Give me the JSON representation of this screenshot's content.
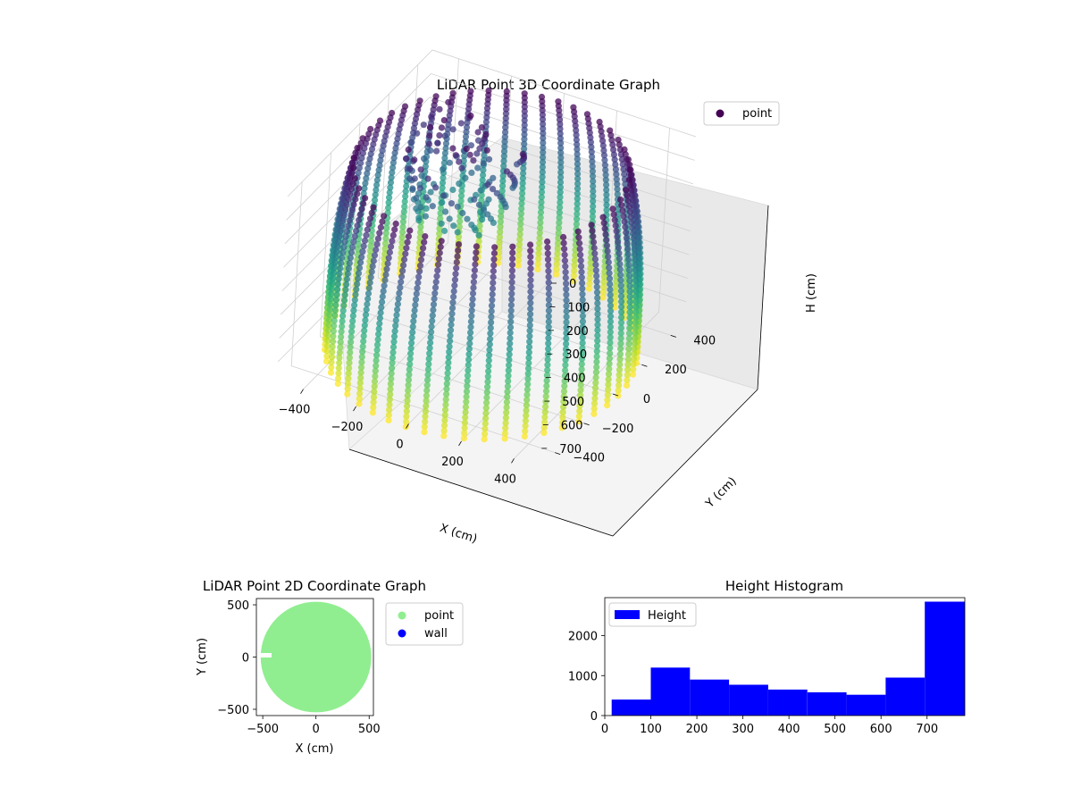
{
  "chart_data": [
    {
      "type": "scatter",
      "projection": "3d",
      "title": "LiDAR Point 3D Coordinate Graph",
      "xlabel": "X (cm)",
      "ylabel": "Y (cm)",
      "zlabel": "H (cm)",
      "xticks": [
        "−400",
        "−200",
        "0",
        "200",
        "400"
      ],
      "yticks": [
        "−400",
        "−200",
        "0",
        "200",
        "400"
      ],
      "zticks": [
        "0",
        "100",
        "200",
        "300",
        "400",
        "500",
        "600",
        "700"
      ],
      "zlim": [
        780,
        0
      ],
      "z_inverted": true,
      "colormap": "viridis",
      "legend": {
        "placement": "upper right",
        "entries": [
          "point"
        ],
        "marker_color": "#440154"
      },
      "grid": true,
      "series": [
        {
          "name": "point",
          "shape": "cylindrical wall of vertical scan lines",
          "radius": 520,
          "z_range": [
            0,
            780
          ],
          "scan_lines": 48
        }
      ]
    },
    {
      "type": "scatter",
      "title": "LiDAR Point 2D Coordinate Graph",
      "xlabel": "X (cm)",
      "ylabel": "Y (cm)",
      "xticks": [
        "−500",
        "0",
        "500"
      ],
      "yticks": [
        "−500",
        "0",
        "500"
      ],
      "xlim": [
        -560,
        540
      ],
      "ylim": [
        -560,
        560
      ],
      "legend": {
        "placement": "outside right",
        "entries": [
          "point",
          "wall"
        ]
      },
      "series": [
        {
          "name": "point",
          "color": "#90ee90",
          "shape": "filled disc",
          "radius": 520,
          "center": [
            0,
            0
          ]
        },
        {
          "name": "wall",
          "color": "#0000ff",
          "points": []
        }
      ]
    },
    {
      "type": "bar",
      "title": "Height Histogram",
      "xticks": [
        "0",
        "100",
        "200",
        "300",
        "400",
        "500",
        "600",
        "700"
      ],
      "yticks": [
        "0",
        "1000",
        "2000"
      ],
      "xlim": [
        0,
        782
      ],
      "ylim": [
        0,
        2950
      ],
      "legend": {
        "placement": "upper left",
        "entries": [
          "Height"
        ]
      },
      "color": "#0000ff",
      "series": [
        {
          "name": "Height",
          "bin_edges": [
            15,
            100,
            185,
            270,
            355,
            440,
            525,
            610,
            695,
            782
          ],
          "values": [
            400,
            1200,
            900,
            770,
            650,
            580,
            520,
            950,
            2850
          ]
        }
      ]
    }
  ]
}
